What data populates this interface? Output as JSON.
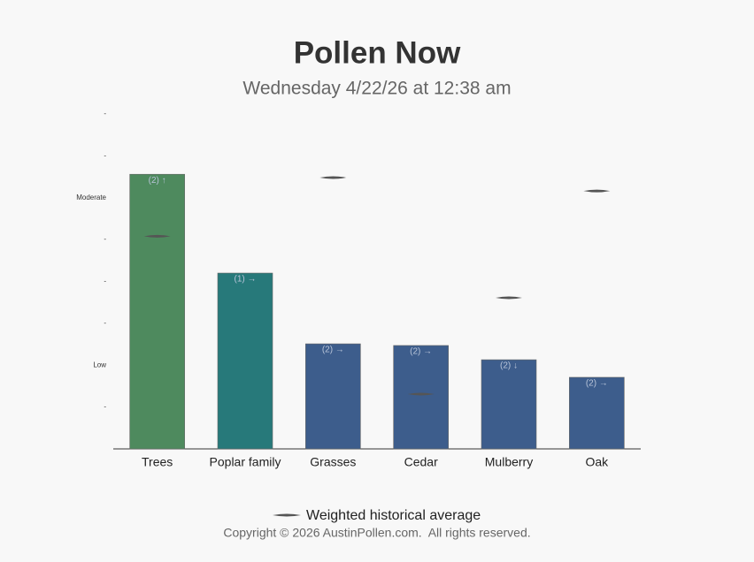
{
  "chart_data": {
    "type": "bar",
    "title": "Pollen Now",
    "subtitle": "Wednesday 4/22/26 at 12:38 am",
    "categories": [
      "Trees",
      "Poplar family",
      "Grasses",
      "Cedar",
      "Mulberry",
      "Oak"
    ],
    "values": [
      6.56,
      4.2,
      2.51,
      2.47,
      2.13,
      1.71
    ],
    "colors": [
      "#4e8a5e",
      "#27797a",
      "#3d5d8c",
      "#3d5d8c",
      "#3d5d8c",
      "#3d5d8c"
    ],
    "annotations": [
      "(2) ↑",
      "(1) →",
      "(2) →",
      "(2) →",
      "(2) ↓",
      "(2) →"
    ],
    "series": [
      {
        "name": "Weighted historical average",
        "color": "#555555",
        "values": [
          5.08,
          null,
          6.48,
          1.31,
          3.61,
          6.16
        ]
      }
    ],
    "ylim": [
      0,
      8
    ],
    "yticks": [
      {
        "value": 1,
        "label": "-"
      },
      {
        "value": 2,
        "label": "Low"
      },
      {
        "value": 3,
        "label": "-"
      },
      {
        "value": 4,
        "label": "-"
      },
      {
        "value": 5,
        "label": "-"
      },
      {
        "value": 6,
        "label": "Moderate"
      },
      {
        "value": 7,
        "label": "-"
      },
      {
        "value": 8,
        "label": "-"
      }
    ],
    "footer": "Copyright © 2026 AustinPollen.com.  All rights reserved."
  }
}
